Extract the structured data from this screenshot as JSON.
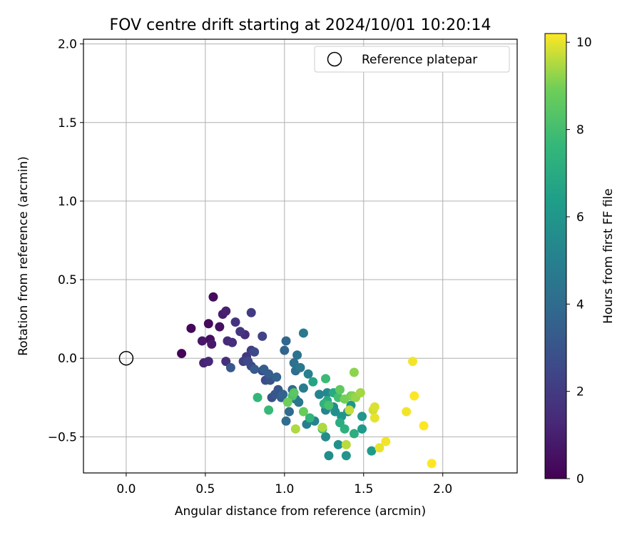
{
  "chart_data": {
    "type": "scatter",
    "title": "FOV centre drift starting at 2024/10/01 10:20:14",
    "xlabel": "Angular distance from reference (arcmin)",
    "ylabel": "Rotation from reference (arcmin)",
    "xlim": [
      -0.27,
      2.47
    ],
    "ylim": [
      -0.73,
      2.03
    ],
    "xticks": [
      0.0,
      0.5,
      1.0,
      1.5,
      2.0
    ],
    "xtick_labels": [
      "0.0",
      "0.5",
      "1.0",
      "1.5",
      "2.0"
    ],
    "yticks": [
      -0.5,
      0.0,
      0.5,
      1.0,
      1.5,
      2.0
    ],
    "ytick_labels": [
      "−0.5",
      "0.0",
      "0.5",
      "1.0",
      "1.5",
      "2.0"
    ],
    "grid": true,
    "legend": {
      "position": "top-right",
      "entries": [
        "Reference platepar"
      ]
    },
    "reference_point": {
      "x": 0.0,
      "y": 0.0
    },
    "colorbar": {
      "label": "Hours from first FF file",
      "colormap": "viridis",
      "range": [
        0,
        10.2
      ],
      "ticks": [
        0,
        2,
        4,
        6,
        8,
        10
      ],
      "tick_labels": [
        "0",
        "2",
        "4",
        "6",
        "8",
        "10"
      ]
    },
    "series": [
      {
        "points": [
          [
            0.35,
            0.03,
            0.1
          ],
          [
            0.41,
            0.19,
            0.2
          ],
          [
            0.52,
            0.22,
            0.3
          ],
          [
            0.55,
            0.39,
            0.35
          ],
          [
            0.53,
            0.12,
            0.4
          ],
          [
            0.59,
            0.2,
            0.5
          ],
          [
            0.48,
            0.11,
            0.7
          ],
          [
            0.54,
            0.09,
            0.8
          ],
          [
            0.61,
            0.28,
            0.9
          ],
          [
            0.63,
            0.3,
            1.0
          ],
          [
            0.49,
            -0.03,
            1.1
          ],
          [
            0.52,
            -0.02,
            1.3
          ],
          [
            0.64,
            0.11,
            1.4
          ],
          [
            0.67,
            0.1,
            1.5
          ],
          [
            0.75,
            0.15,
            1.5
          ],
          [
            0.63,
            -0.02,
            1.6
          ],
          [
            0.69,
            0.23,
            1.7
          ],
          [
            0.72,
            0.17,
            1.8
          ],
          [
            0.76,
            0.01,
            1.9
          ],
          [
            0.79,
            0.29,
            2.0
          ],
          [
            0.79,
            0.05,
            2.1
          ],
          [
            0.74,
            -0.02,
            2.2
          ],
          [
            0.86,
            0.14,
            2.3
          ],
          [
            0.79,
            -0.05,
            2.4
          ],
          [
            0.86,
            -0.08,
            2.5
          ],
          [
            0.81,
            0.04,
            2.6
          ],
          [
            0.77,
            -0.02,
            2.6
          ],
          [
            0.88,
            -0.14,
            2.7
          ],
          [
            0.92,
            -0.25,
            2.8
          ],
          [
            0.91,
            -0.14,
            2.9
          ],
          [
            0.96,
            -0.2,
            3.0
          ],
          [
            0.94,
            -0.23,
            3.1
          ],
          [
            0.66,
            -0.06,
            3.2
          ],
          [
            0.81,
            -0.07,
            3.3
          ],
          [
            0.87,
            -0.07,
            3.4
          ],
          [
            0.9,
            -0.1,
            3.4
          ],
          [
            0.98,
            -0.25,
            3.5
          ],
          [
            0.95,
            -0.12,
            3.6
          ],
          [
            0.99,
            -0.23,
            3.7
          ],
          [
            1.0,
            0.05,
            3.7
          ],
          [
            1.01,
            0.11,
            3.8
          ],
          [
            1.03,
            -0.34,
            3.9
          ],
          [
            1.01,
            -0.4,
            4.0
          ],
          [
            1.05,
            -0.2,
            4.0
          ],
          [
            1.07,
            -0.08,
            4.1
          ],
          [
            1.06,
            -0.03,
            4.2
          ],
          [
            1.08,
            0.02,
            4.3
          ],
          [
            1.07,
            -0.26,
            4.4
          ],
          [
            1.09,
            -0.28,
            4.5
          ],
          [
            1.1,
            -0.06,
            4.6
          ],
          [
            1.12,
            0.16,
            4.7
          ],
          [
            1.12,
            -0.19,
            4.8
          ],
          [
            1.14,
            -0.42,
            4.9
          ],
          [
            1.15,
            -0.1,
            5.0
          ],
          [
            1.19,
            -0.4,
            5.1
          ],
          [
            1.22,
            -0.23,
            5.2
          ],
          [
            1.24,
            -0.45,
            5.3
          ],
          [
            1.26,
            -0.33,
            5.3
          ],
          [
            1.27,
            -0.22,
            5.4
          ],
          [
            1.26,
            -0.5,
            5.5
          ],
          [
            1.28,
            -0.62,
            5.6
          ],
          [
            1.31,
            -0.31,
            5.6
          ],
          [
            1.32,
            -0.34,
            5.7
          ],
          [
            1.34,
            -0.55,
            5.8
          ],
          [
            1.36,
            -0.37,
            5.9
          ],
          [
            1.39,
            -0.62,
            5.9
          ],
          [
            1.4,
            -0.34,
            6.0
          ],
          [
            1.42,
            -0.3,
            6.0
          ],
          [
            1.49,
            -0.37,
            6.1
          ],
          [
            1.49,
            -0.45,
            6.2
          ],
          [
            1.55,
            -0.59,
            6.3
          ],
          [
            1.18,
            -0.15,
            6.7
          ],
          [
            1.27,
            -0.27,
            6.9
          ],
          [
            1.31,
            -0.22,
            7.0
          ],
          [
            1.35,
            -0.41,
            7.1
          ],
          [
            1.44,
            -0.48,
            7.2
          ],
          [
            1.38,
            -0.45,
            7.3
          ],
          [
            1.25,
            -0.29,
            7.4
          ],
          [
            1.16,
            -0.38,
            7.5
          ],
          [
            0.83,
            -0.25,
            7.6
          ],
          [
            0.9,
            -0.33,
            7.7
          ],
          [
            1.24,
            -0.45,
            7.8
          ],
          [
            1.26,
            -0.13,
            7.8
          ],
          [
            1.34,
            -0.25,
            8.0
          ],
          [
            1.28,
            -0.3,
            8.1
          ],
          [
            1.05,
            -0.24,
            8.2
          ],
          [
            1.06,
            -0.22,
            8.5
          ],
          [
            1.35,
            -0.2,
            8.6
          ],
          [
            1.42,
            -0.24,
            8.7
          ],
          [
            1.12,
            -0.34,
            8.8
          ],
          [
            1.02,
            -0.28,
            8.9
          ],
          [
            1.38,
            -0.26,
            9.0
          ],
          [
            1.43,
            -0.24,
            9.1
          ],
          [
            1.44,
            -0.09,
            9.2
          ],
          [
            1.45,
            -0.25,
            9.3
          ],
          [
            1.48,
            -0.22,
            9.4
          ],
          [
            1.24,
            -0.44,
            9.5
          ],
          [
            1.07,
            -0.45,
            9.5
          ],
          [
            1.39,
            -0.55,
            9.6
          ],
          [
            1.41,
            -0.33,
            9.7
          ],
          [
            1.56,
            -0.33,
            9.8
          ],
          [
            1.57,
            -0.31,
            9.9
          ],
          [
            1.57,
            -0.38,
            10.0
          ],
          [
            1.6,
            -0.57,
            10.0
          ],
          [
            1.64,
            -0.53,
            10.1
          ],
          [
            1.77,
            -0.34,
            10.1
          ],
          [
            1.81,
            -0.02,
            10.1
          ],
          [
            1.82,
            -0.24,
            10.2
          ],
          [
            1.88,
            -0.43,
            10.2
          ],
          [
            1.93,
            -0.67,
            10.2
          ]
        ]
      }
    ]
  }
}
